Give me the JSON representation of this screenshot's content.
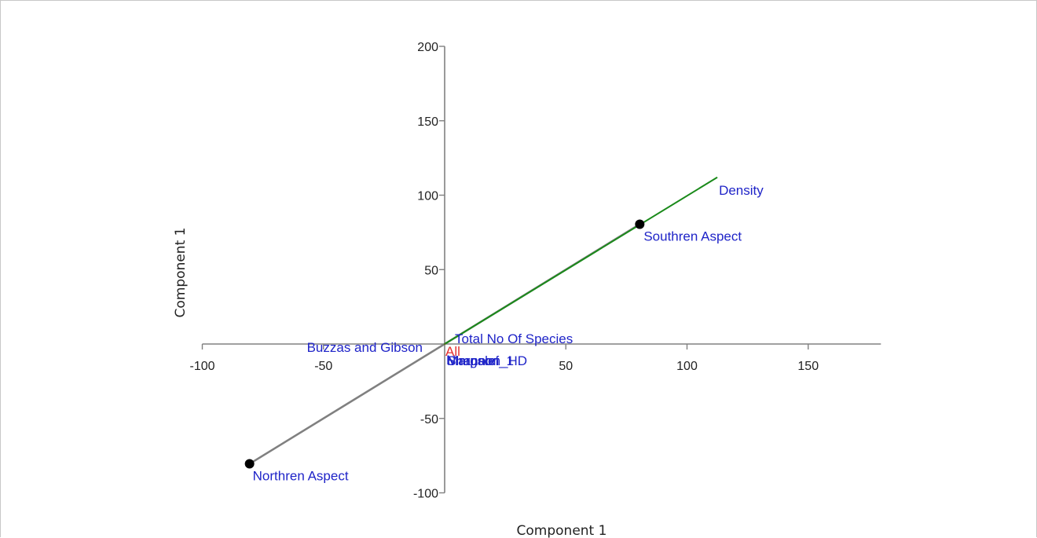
{
  "chart_data": {
    "type": "scatter",
    "subtype": "biplot",
    "xlabel": "Component 1",
    "ylabel": "Component 1",
    "xlim": [
      -100,
      180
    ],
    "ylim": [
      -100,
      200
    ],
    "x_ticks": [
      -100,
      -50,
      50,
      100,
      150
    ],
    "y_ticks": [
      -100,
      -50,
      50,
      100,
      200
    ],
    "y_ticks_all": [
      -100,
      -50,
      50,
      100,
      150,
      200
    ],
    "grid": false,
    "axis_color": "#808080",
    "points": [
      {
        "label": "Southren Aspect",
        "x": 80.5,
        "y": 80.5
      },
      {
        "label": "Northren Aspect",
        "x": -80.5,
        "y": -80.5
      }
    ],
    "vectors": [
      {
        "label": "Density",
        "x": 112.5,
        "y": 112.0,
        "color": "#1a8a1a"
      },
      {
        "label": "Total No Of Species",
        "x": 0.8,
        "y": 0.8,
        "color": "#1a8a1a"
      },
      {
        "label": "Buzzas and Gibson",
        "x": -0.3,
        "y": 0.2,
        "color": "#1a8a1a"
      },
      {
        "label": "Shannon_HD",
        "x": 0.2,
        "y": -0.2,
        "color": "#1a8a1a"
      },
      {
        "label": "Simpson_1",
        "x": 0.1,
        "y": -0.3,
        "color": "#1a8a1a"
      },
      {
        "label": "Margalef",
        "x": 0.1,
        "y": -0.2,
        "color": "#1a8a1a"
      },
      {
        "label": "N",
        "x": 0.3,
        "y": 0.1,
        "color": "#1a8a1a"
      },
      {
        "label": "All",
        "x": 0.2,
        "y": -0.1,
        "color": "#e53030"
      }
    ],
    "label_color": "#1f24c8",
    "point_color": "#000000",
    "path_color": "#808080"
  }
}
